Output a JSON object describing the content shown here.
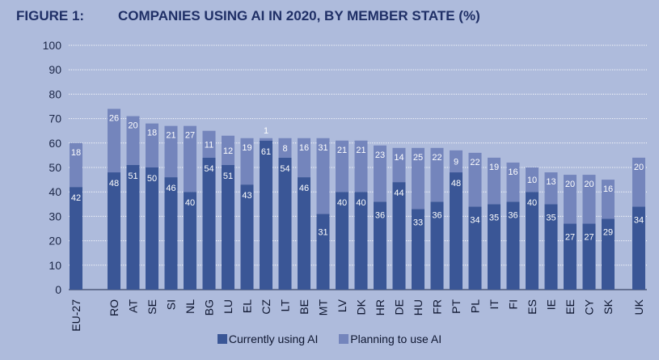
{
  "figure_label": "FIGURE 1:",
  "title": "COMPANIES USING AI IN 2020, BY MEMBER STATE (%)",
  "colors": {
    "currently": "#3a5696",
    "planning": "#7485bc",
    "background": "#aebbdc",
    "gridline": "#ffffff"
  },
  "chart_data": {
    "type": "bar",
    "stacked": true,
    "title": "COMPANIES USING AI IN 2020, BY MEMBER STATE (%)",
    "ylim": [
      0,
      100
    ],
    "yticks": [
      0,
      10,
      20,
      30,
      40,
      50,
      60,
      70,
      80,
      90,
      100
    ],
    "grid": true,
    "legend_position": "bottom",
    "categories": [
      "EU-27",
      "RO",
      "AT",
      "SE",
      "SI",
      "NL",
      "BG",
      "LU",
      "EL",
      "CZ",
      "LT",
      "BE",
      "MT",
      "LV",
      "DK",
      "HR",
      "DE",
      "HU",
      "FR",
      "PT",
      "PL",
      "IT",
      "FI",
      "ES",
      "IE",
      "EE",
      "CY",
      "SK",
      "UK"
    ],
    "series": [
      {
        "name": "Currently using AI",
        "values": [
          42,
          48,
          51,
          50,
          46,
          40,
          54,
          51,
          43,
          61,
          54,
          46,
          31,
          40,
          40,
          36,
          44,
          33,
          36,
          48,
          34,
          35,
          36,
          40,
          35,
          27,
          27,
          29,
          34
        ]
      },
      {
        "name": "Planning to use AI",
        "values": [
          18,
          26,
          20,
          18,
          21,
          27,
          11,
          12,
          19,
          1,
          8,
          16,
          31,
          21,
          21,
          23,
          14,
          25,
          22,
          9,
          22,
          19,
          16,
          10,
          13,
          20,
          20,
          16,
          20
        ]
      }
    ]
  }
}
